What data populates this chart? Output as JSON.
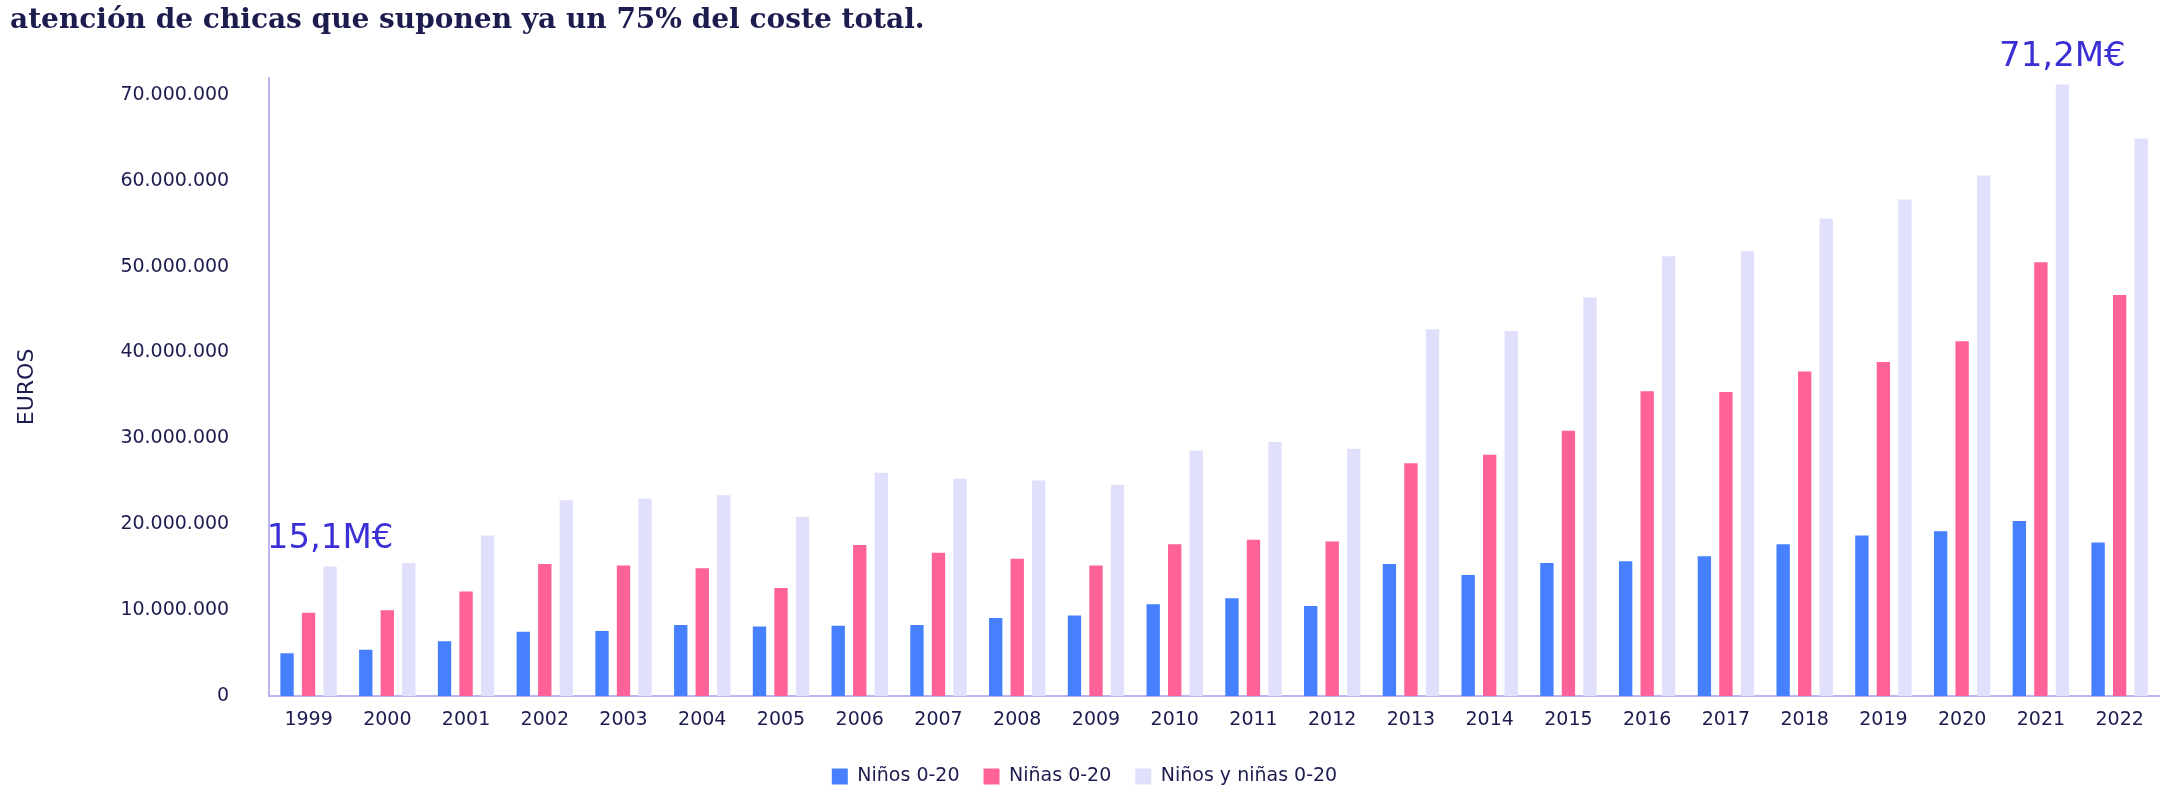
{
  "chart_data": {
    "type": "bar",
    "title": "atención de chicas que suponen ya un 75% del coste total.",
    "ylabel": "EUROS",
    "categories": [
      "1999",
      "2000",
      "2001",
      "2002",
      "2003",
      "2004",
      "2005",
      "2006",
      "2007",
      "2008",
      "2009",
      "2010",
      "2011",
      "2012",
      "2013",
      "2014",
      "2015",
      "2016",
      "2017",
      "2018",
      "2019",
      "2020",
      "2021",
      "2022"
    ],
    "series": [
      {
        "name": "Niños 0-20",
        "color": "#4680ff",
        "values": [
          5000000,
          5400000,
          6400000,
          7500000,
          7600000,
          8300000,
          8100000,
          8200000,
          8300000,
          9100000,
          9400000,
          10700000,
          11400000,
          10500000,
          15400000,
          14100000,
          15500000,
          15700000,
          16300000,
          17700000,
          18700000,
          19200000,
          20400000,
          17900000
        ]
      },
      {
        "name": "Niñas 0-20",
        "color": "#ff6199",
        "values": [
          9700000,
          10000000,
          12200000,
          15400000,
          15200000,
          14900000,
          12600000,
          17600000,
          16700000,
          16000000,
          15200000,
          17700000,
          18200000,
          18000000,
          27100000,
          28100000,
          30900000,
          35500000,
          35400000,
          37800000,
          38900000,
          41300000,
          50500000,
          46700000
        ]
      },
      {
        "name": "Niños y niñas 0-20",
        "color": "#e0dffc",
        "values": [
          15100000,
          15500000,
          18700000,
          22800000,
          23000000,
          23400000,
          20900000,
          26000000,
          25300000,
          25100000,
          24600000,
          28600000,
          29600000,
          28800000,
          42700000,
          42500000,
          46400000,
          51200000,
          51800000,
          55600000,
          57800000,
          60600000,
          71200000,
          64900000
        ]
      }
    ],
    "ylim": [
      0,
      72000000
    ],
    "yticks": [
      0,
      {
        "value": 10000000,
        "label": "10.000.000"
      },
      {
        "value": 20000000,
        "label": "20.000.000"
      },
      {
        "value": 30000000,
        "label": "30.000.000"
      },
      {
        "value": 40000000,
        "label": "40.000.000"
      },
      {
        "value": 50000000,
        "label": "50.000.000"
      },
      {
        "value": 60000000,
        "label": "60.000.000"
      },
      {
        "value": 70000000,
        "label": "70.000.000"
      }
    ],
    "annotations": [
      "15,1M€",
      "71,2M€"
    ],
    "grid": false,
    "legend": "bottom"
  }
}
